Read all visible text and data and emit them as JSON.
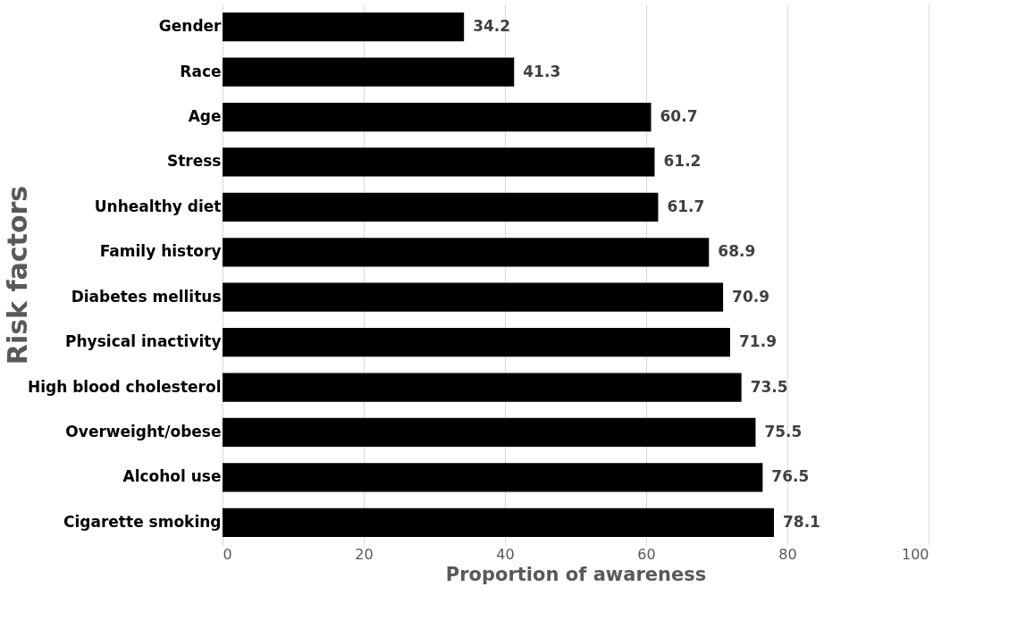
{
  "chart_data": {
    "type": "bar",
    "orientation": "horizontal",
    "xlabel": "Proportion of awareness",
    "ylabel": "Risk factors",
    "categories": [
      "Gender",
      "Race",
      "Age",
      "Stress",
      "Unhealthy diet",
      "Family history",
      "Diabetes mellitus",
      "Physical inactivity",
      "High blood cholesterol",
      "Overweight/obese",
      "Alcohol use",
      "Cigarette smoking"
    ],
    "values": [
      34.2,
      41.3,
      60.7,
      61.2,
      61.7,
      68.9,
      70.9,
      71.9,
      73.5,
      75.5,
      76.5,
      78.1
    ],
    "color": "#000000",
    "xlim": [
      0,
      100
    ],
    "xticks": [
      0,
      20,
      40,
      60,
      80,
      100
    ],
    "grid": "x",
    "data_labels": true
  }
}
